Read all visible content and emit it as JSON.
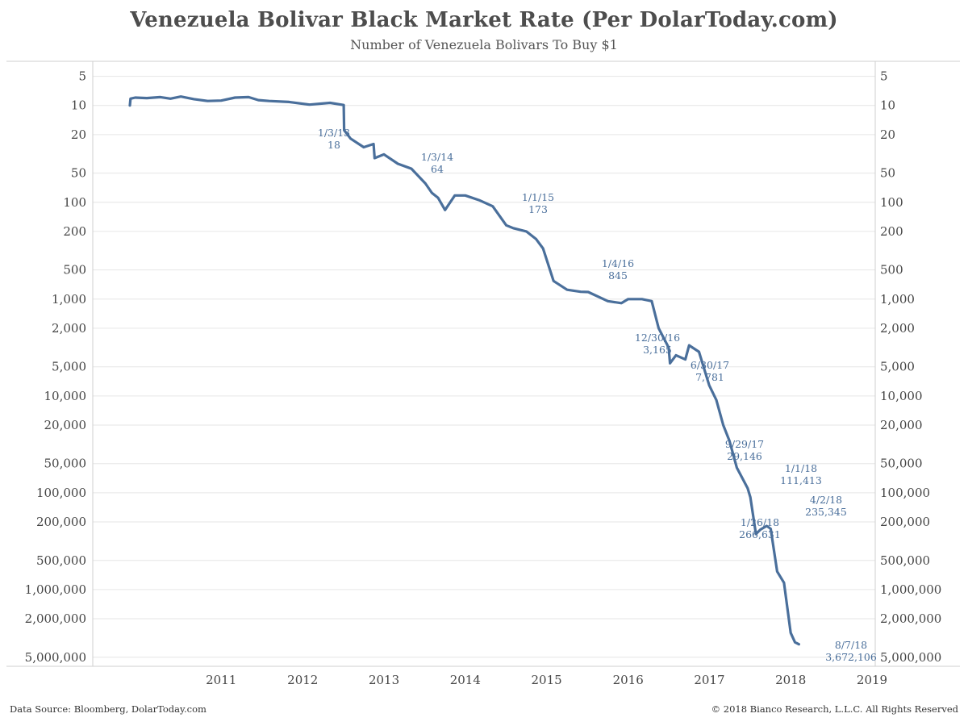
{
  "header": {
    "title": "Venezuela Bolivar Black Market Rate (Per DolarToday.com)",
    "subtitle": "Number of Venezuela Bolivars To Buy $1"
  },
  "footer": {
    "source": "Data Source: Bloomberg, DolarToday.com",
    "copyright": "© 2018 Bianco Research, L.L.C. All Rights Reserved"
  },
  "chart_data": {
    "type": "line",
    "title": "Venezuela Bolivar Black Market Rate (Per DolarToday.com)",
    "subtitle": "Number of Venezuela Bolivars To Buy $1",
    "xlabel": "",
    "ylabel": "",
    "y_scale": "log",
    "y_inverted": true,
    "ylim": [
      3.5,
      6200000
    ],
    "xlim": [
      "2010-01-01",
      "2019-01-31"
    ],
    "grid": "horizontal",
    "colors": {
      "line": "#4a6f9b",
      "annotation": "#4a6f9b",
      "grid": "#e6e6e6"
    },
    "x_ticks": [
      "2011",
      "2012",
      "2013",
      "2014",
      "2015",
      "2016",
      "2017",
      "2018",
      "2019"
    ],
    "x_tick_values": [
      "2011-07-01",
      "2012-07-01",
      "2013-07-01",
      "2014-07-01",
      "2015-07-01",
      "2016-07-01",
      "2017-07-01",
      "2018-07-01",
      "2019-07-01"
    ],
    "y_ticks": [
      5,
      10,
      20,
      50,
      100,
      200,
      500,
      1000,
      2000,
      5000,
      10000,
      20000,
      50000,
      100000,
      200000,
      500000,
      1000000,
      2000000,
      5000000
    ],
    "y_tick_labels": [
      "5",
      "10",
      "20",
      "50",
      "100",
      "200",
      "500",
      "1,000",
      "2,000",
      "5,000",
      "10,000",
      "20,000",
      "50,000",
      "100,000",
      "200,000",
      "500,000",
      "1,000,000",
      "2,000,000",
      "5,000,000"
    ],
    "series": [
      {
        "points": [
          [
            "2010-05-17",
            10.0
          ],
          [
            "2010-05-20",
            8.5
          ],
          [
            "2010-06-10",
            8.3
          ],
          [
            "2010-08-01",
            8.4
          ],
          [
            "2010-10-01",
            8.2
          ],
          [
            "2010-11-15",
            8.5
          ],
          [
            "2011-01-01",
            8.1
          ],
          [
            "2011-03-01",
            8.6
          ],
          [
            "2011-05-01",
            9.0
          ],
          [
            "2011-07-01",
            8.9
          ],
          [
            "2011-09-01",
            8.3
          ],
          [
            "2011-11-01",
            8.2
          ],
          [
            "2011-12-15",
            8.8
          ],
          [
            "2012-02-01",
            9.0
          ],
          [
            "2012-05-01",
            9.2
          ],
          [
            "2012-08-01",
            9.8
          ],
          [
            "2012-11-01",
            9.4
          ],
          [
            "2013-01-01",
            9.9
          ],
          [
            "2013-01-03",
            18
          ],
          [
            "2013-02-01",
            22
          ],
          [
            "2013-04-01",
            27
          ],
          [
            "2013-05-15",
            25
          ],
          [
            "2013-05-20",
            35
          ],
          [
            "2013-07-01",
            32
          ],
          [
            "2013-09-01",
            40
          ],
          [
            "2013-11-01",
            45
          ],
          [
            "2014-01-03",
            64
          ],
          [
            "2014-02-01",
            80
          ],
          [
            "2014-03-01",
            90
          ],
          [
            "2014-04-01",
            120
          ],
          [
            "2014-05-15",
            85
          ],
          [
            "2014-07-01",
            85
          ],
          [
            "2014-09-01",
            95
          ],
          [
            "2014-11-01",
            110
          ],
          [
            "2015-01-01",
            173
          ],
          [
            "2015-02-01",
            185
          ],
          [
            "2015-04-01",
            200
          ],
          [
            "2015-05-15",
            240
          ],
          [
            "2015-06-15",
            300
          ],
          [
            "2015-08-01",
            650
          ],
          [
            "2015-10-01",
            800
          ],
          [
            "2015-12-01",
            840
          ],
          [
            "2016-01-04",
            845
          ],
          [
            "2016-04-01",
            1050
          ],
          [
            "2016-06-01",
            1100
          ],
          [
            "2016-07-01",
            1000
          ],
          [
            "2016-09-01",
            1000
          ],
          [
            "2016-10-15",
            1050
          ],
          [
            "2016-11-15",
            2000
          ],
          [
            "2016-12-30",
            3165
          ],
          [
            "2017-01-05",
            4600
          ],
          [
            "2017-02-01",
            3800
          ],
          [
            "2017-03-15",
            4200
          ],
          [
            "2017-04-01",
            3000
          ],
          [
            "2017-05-15",
            3500
          ],
          [
            "2017-06-30",
            7781
          ],
          [
            "2017-08-01",
            11000
          ],
          [
            "2017-09-01",
            20000
          ],
          [
            "2017-09-29",
            29146
          ],
          [
            "2017-11-01",
            55000
          ],
          [
            "2017-12-20",
            90000
          ],
          [
            "2018-01-01",
            111413
          ],
          [
            "2018-01-26",
            266631
          ],
          [
            "2018-02-15",
            240000
          ],
          [
            "2018-03-15",
            220000
          ],
          [
            "2018-04-02",
            235345
          ],
          [
            "2018-05-01",
            650000
          ],
          [
            "2018-06-01",
            850000
          ],
          [
            "2018-07-01",
            2800000
          ],
          [
            "2018-07-20",
            3500000
          ],
          [
            "2018-08-07",
            3672106
          ]
        ]
      }
    ],
    "annotations": [
      {
        "date": "1/3/13",
        "value": "18"
      },
      {
        "date": "1/3/14",
        "value": "64"
      },
      {
        "date": "1/1/15",
        "value": "173"
      },
      {
        "date": "1/4/16",
        "value": "845"
      },
      {
        "date": "12/30/16",
        "value": "3,165"
      },
      {
        "date": "6/30/17",
        "value": "7,781"
      },
      {
        "date": "9/29/17",
        "value": "29,146"
      },
      {
        "date": "1/1/18",
        "value": "111,413"
      },
      {
        "date": "1/26/18",
        "value": "266,631"
      },
      {
        "date": "4/2/18",
        "value": "235,345"
      },
      {
        "date": "8/7/18",
        "value": "3,672,106"
      }
    ]
  }
}
